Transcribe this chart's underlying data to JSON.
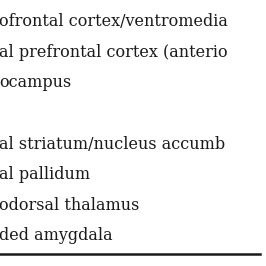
{
  "lines": [
    "ofrontal cortex/ventromedia",
    "al prefrontal cortex (anterio",
    "ocampus",
    "",
    "al striatum/nucleus accumb",
    "al pallidum",
    "odorsal thalamus",
    "ded amygdala"
  ],
  "background_color": "#ffffff",
  "text_color": "#1a1a1a",
  "font_size": 11.5,
  "line_color": "#1a1a1a",
  "line_lw": 1.8
}
